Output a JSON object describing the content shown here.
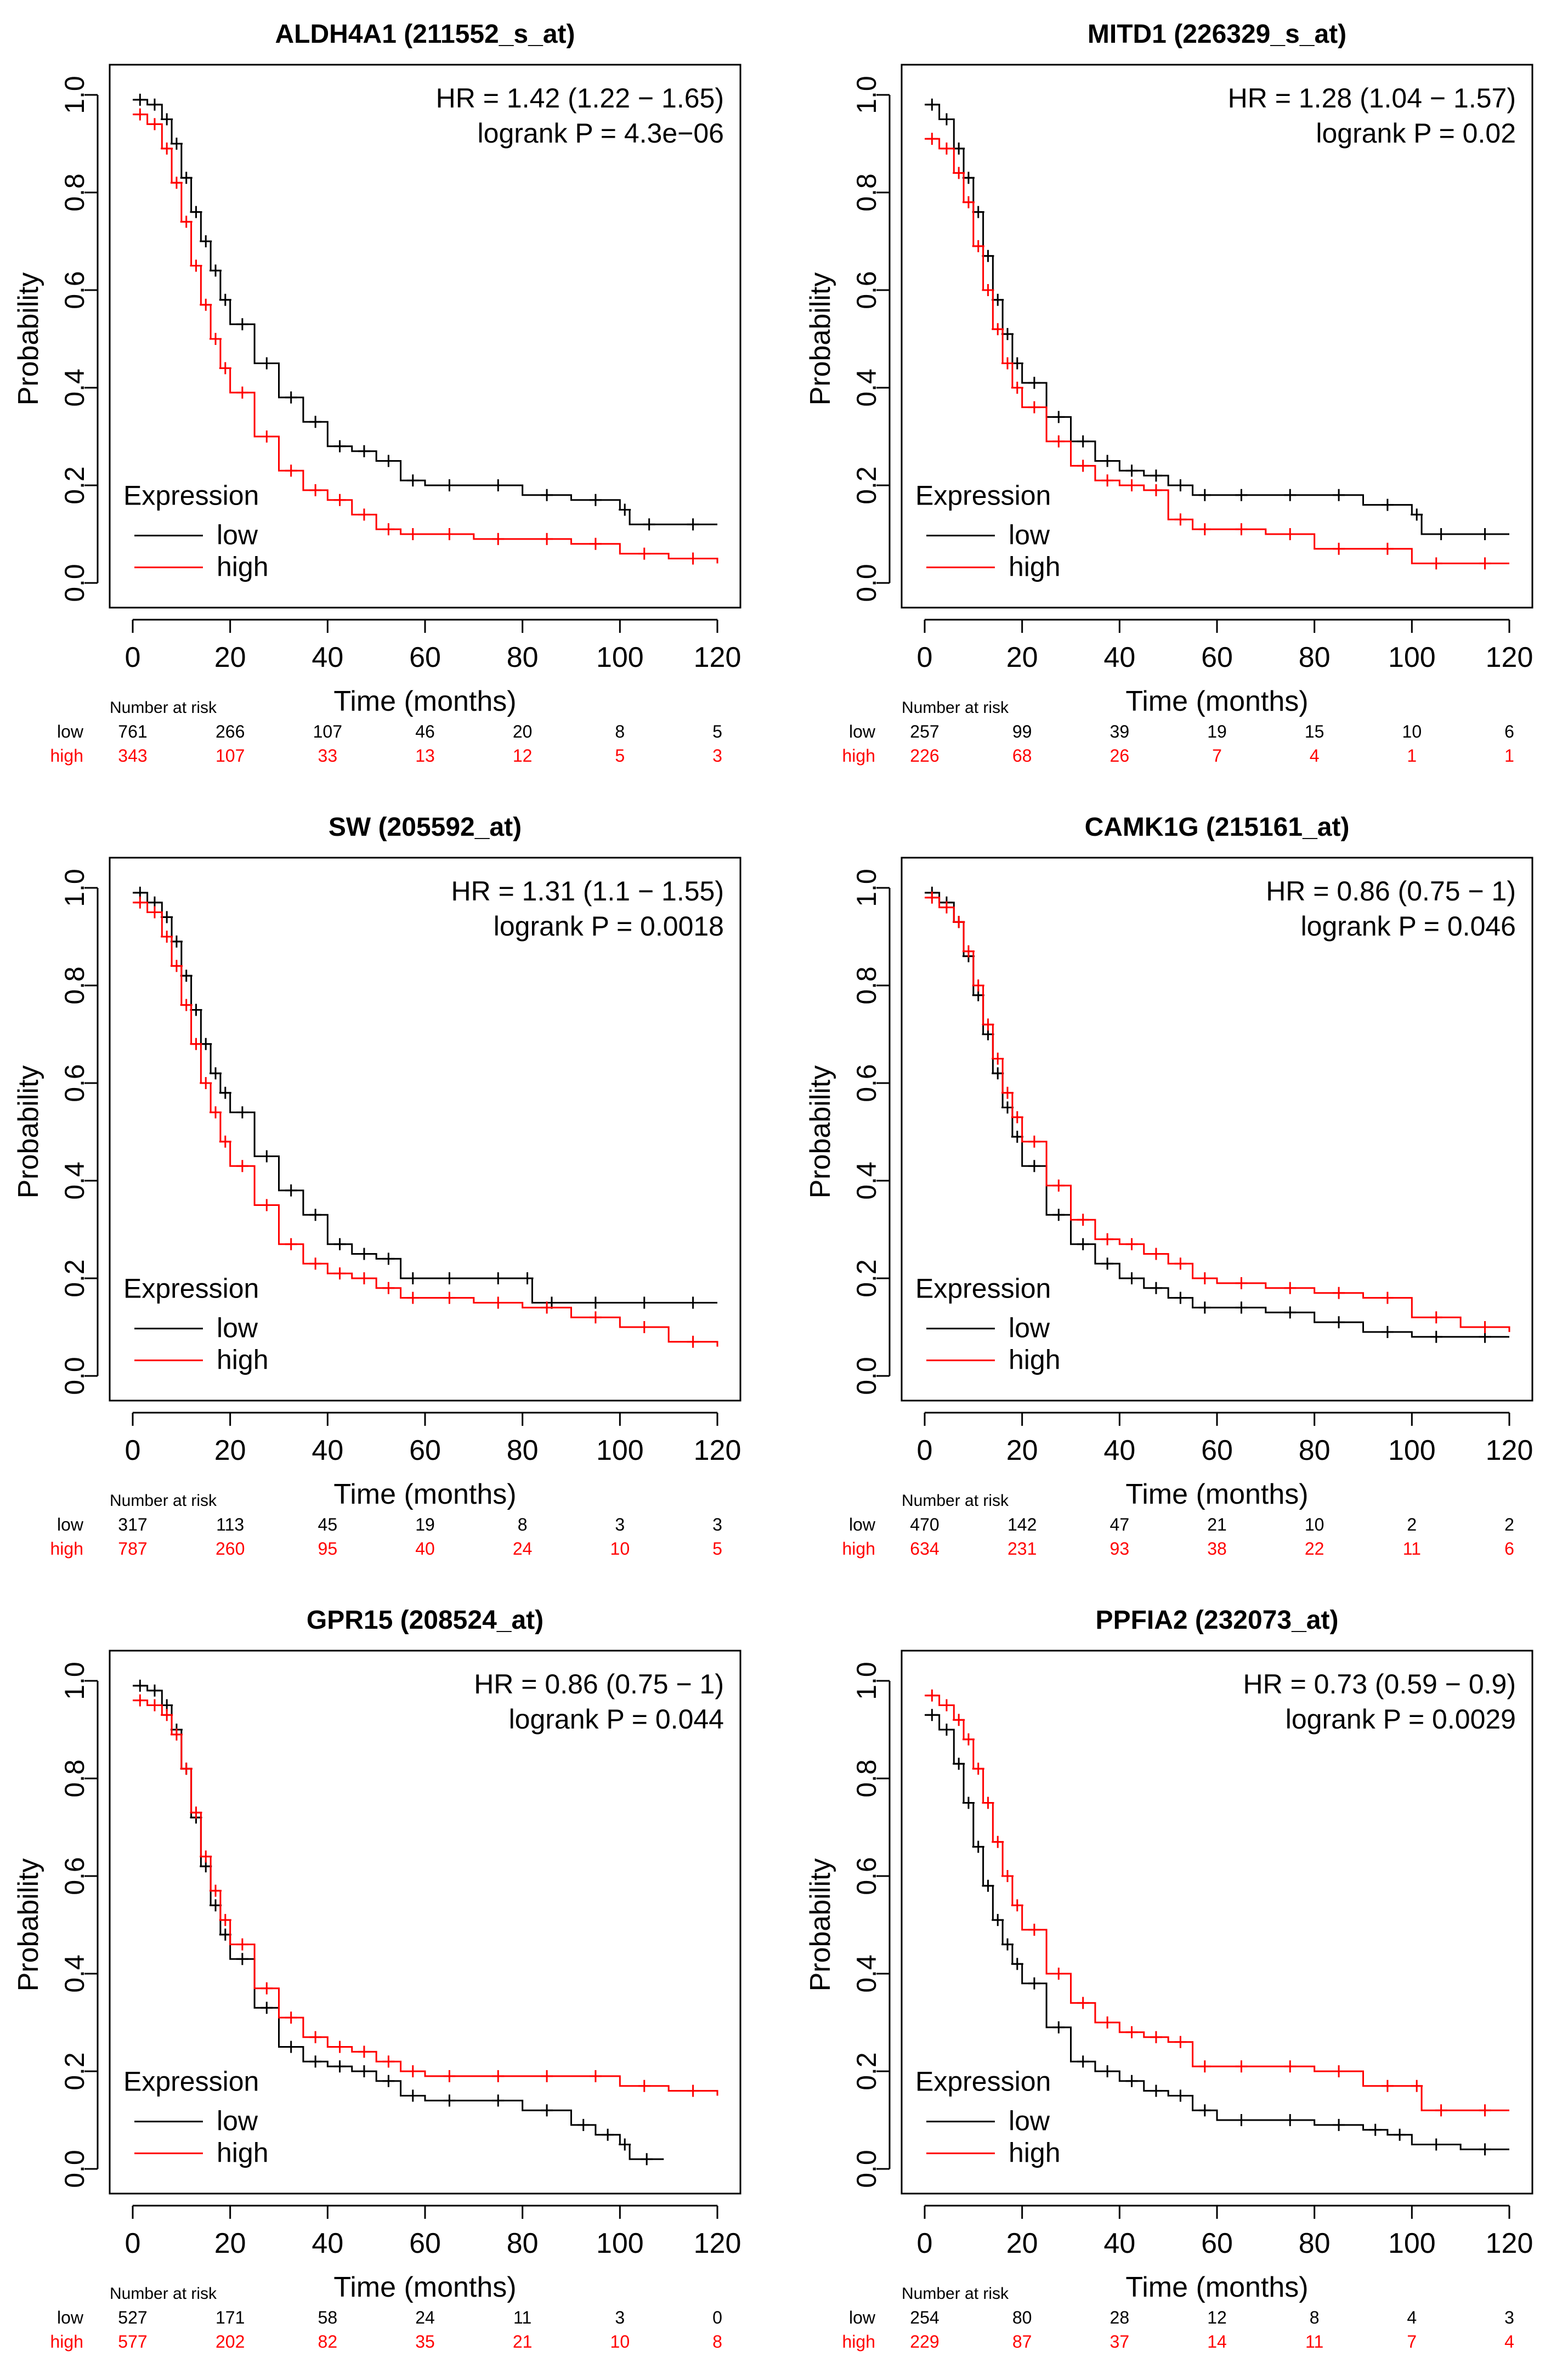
{
  "colors": {
    "low": "#000000",
    "high": "#ff0000",
    "axis": "#000000",
    "frame": "#000000"
  },
  "chart_data": [
    {
      "type": "line",
      "title": "ALDH4A1 (211552_s_at)",
      "xlabel": "Time (months)",
      "ylabel": "Probability",
      "xlim": [
        0,
        120
      ],
      "ylim": [
        0,
        1
      ],
      "xticks": [
        "0",
        "20",
        "40",
        "60",
        "80",
        "100",
        "120"
      ],
      "yticks": [
        "0.0",
        "0.2",
        "0.4",
        "0.6",
        "0.8",
        "1.0"
      ],
      "hr_text": "HR = 1.42 (1.22 − 1.65)",
      "p_text": "logrank P = 4.3e−06",
      "legend_title": "Expression",
      "risk_title": "Number at risk",
      "series": [
        {
          "name": "low",
          "x": [
            0,
            3,
            6,
            8,
            10,
            12,
            14,
            16,
            18,
            20,
            25,
            30,
            35,
            40,
            45,
            50,
            55,
            60,
            70,
            80,
            90,
            100,
            102,
            110,
            120
          ],
          "y": [
            0.99,
            0.98,
            0.95,
            0.9,
            0.83,
            0.76,
            0.7,
            0.64,
            0.58,
            0.53,
            0.45,
            0.38,
            0.33,
            0.28,
            0.27,
            0.25,
            0.21,
            0.2,
            0.2,
            0.18,
            0.17,
            0.15,
            0.12,
            0.12,
            0.12
          ],
          "risk": [
            "761",
            "266",
            "107",
            "46",
            "20",
            "8",
            "5"
          ]
        },
        {
          "name": "high",
          "x": [
            0,
            3,
            6,
            8,
            10,
            12,
            14,
            16,
            18,
            20,
            25,
            30,
            35,
            40,
            45,
            50,
            55,
            60,
            70,
            80,
            90,
            100,
            110,
            120
          ],
          "y": [
            0.96,
            0.94,
            0.89,
            0.82,
            0.74,
            0.65,
            0.57,
            0.5,
            0.44,
            0.39,
            0.3,
            0.23,
            0.19,
            0.17,
            0.14,
            0.11,
            0.1,
            0.1,
            0.09,
            0.09,
            0.08,
            0.06,
            0.05,
            0.04
          ],
          "risk": [
            "343",
            "107",
            "33",
            "13",
            "12",
            "5",
            "3"
          ]
        }
      ]
    },
    {
      "type": "line",
      "title": "MITD1 (226329_s_at)",
      "xlabel": "Time (months)",
      "ylabel": "Probability",
      "xlim": [
        0,
        120
      ],
      "ylim": [
        0,
        1
      ],
      "xticks": [
        "0",
        "20",
        "40",
        "60",
        "80",
        "100",
        "120"
      ],
      "yticks": [
        "0.0",
        "0.2",
        "0.4",
        "0.6",
        "0.8",
        "1.0"
      ],
      "hr_text": "HR = 1.28 (1.04 − 1.57)",
      "p_text": "logrank P = 0.02",
      "legend_title": "Expression",
      "risk_title": "Number at risk",
      "series": [
        {
          "name": "low",
          "x": [
            0,
            3,
            6,
            8,
            10,
            12,
            14,
            16,
            18,
            20,
            25,
            30,
            35,
            40,
            45,
            50,
            55,
            60,
            70,
            80,
            90,
            100,
            102,
            110,
            120
          ],
          "y": [
            0.98,
            0.95,
            0.89,
            0.83,
            0.76,
            0.67,
            0.58,
            0.51,
            0.45,
            0.41,
            0.34,
            0.29,
            0.25,
            0.23,
            0.22,
            0.2,
            0.18,
            0.18,
            0.18,
            0.18,
            0.16,
            0.14,
            0.1,
            0.1,
            0.1
          ],
          "risk": [
            "257",
            "99",
            "39",
            "19",
            "15",
            "10",
            "6"
          ]
        },
        {
          "name": "high",
          "x": [
            0,
            3,
            6,
            8,
            10,
            12,
            14,
            16,
            18,
            20,
            25,
            30,
            35,
            40,
            45,
            50,
            55,
            60,
            70,
            80,
            90,
            100,
            110,
            120
          ],
          "y": [
            0.91,
            0.89,
            0.84,
            0.78,
            0.69,
            0.6,
            0.52,
            0.45,
            0.4,
            0.36,
            0.29,
            0.24,
            0.21,
            0.2,
            0.19,
            0.13,
            0.11,
            0.11,
            0.1,
            0.07,
            0.07,
            0.04,
            0.04,
            0.04
          ],
          "risk": [
            "226",
            "68",
            "26",
            "7",
            "4",
            "1",
            "1"
          ]
        }
      ]
    },
    {
      "type": "line",
      "title": "SW (205592_at)",
      "xlabel": "Time (months)",
      "ylabel": "Probability",
      "xlim": [
        0,
        120
      ],
      "ylim": [
        0,
        1
      ],
      "xticks": [
        "0",
        "20",
        "40",
        "60",
        "80",
        "100",
        "120"
      ],
      "yticks": [
        "0.0",
        "0.2",
        "0.4",
        "0.6",
        "0.8",
        "1.0"
      ],
      "hr_text": "HR = 1.31 (1.1 − 1.55)",
      "p_text": "logrank P = 0.0018",
      "legend_title": "Expression",
      "risk_title": "Number at risk",
      "series": [
        {
          "name": "low",
          "x": [
            0,
            3,
            6,
            8,
            10,
            12,
            14,
            16,
            18,
            20,
            25,
            30,
            35,
            40,
            45,
            50,
            55,
            60,
            70,
            80,
            82,
            90,
            100,
            110,
            120
          ],
          "y": [
            0.99,
            0.97,
            0.94,
            0.89,
            0.82,
            0.75,
            0.68,
            0.62,
            0.58,
            0.54,
            0.45,
            0.38,
            0.33,
            0.27,
            0.25,
            0.24,
            0.2,
            0.2,
            0.2,
            0.2,
            0.15,
            0.15,
            0.15,
            0.15,
            0.15
          ],
          "risk": [
            "317",
            "113",
            "45",
            "19",
            "8",
            "3",
            "3"
          ]
        },
        {
          "name": "high",
          "x": [
            0,
            3,
            6,
            8,
            10,
            12,
            14,
            16,
            18,
            20,
            25,
            30,
            35,
            40,
            45,
            50,
            55,
            60,
            70,
            80,
            90,
            100,
            110,
            120
          ],
          "y": [
            0.97,
            0.95,
            0.9,
            0.84,
            0.76,
            0.68,
            0.6,
            0.54,
            0.48,
            0.43,
            0.35,
            0.27,
            0.23,
            0.21,
            0.2,
            0.18,
            0.16,
            0.16,
            0.15,
            0.14,
            0.12,
            0.1,
            0.07,
            0.06
          ],
          "risk": [
            "787",
            "260",
            "95",
            "40",
            "24",
            "10",
            "5"
          ]
        }
      ]
    },
    {
      "type": "line",
      "title": "CAMK1G (215161_at)",
      "xlabel": "Time (months)",
      "ylabel": "Probability",
      "xlim": [
        0,
        120
      ],
      "ylim": [
        0,
        1
      ],
      "xticks": [
        "0",
        "20",
        "40",
        "60",
        "80",
        "100",
        "120"
      ],
      "yticks": [
        "0.0",
        "0.2",
        "0.4",
        "0.6",
        "0.8",
        "1.0"
      ],
      "hr_text": "HR = 0.86 (0.75 − 1)",
      "p_text": "logrank P = 0.046",
      "legend_title": "Expression",
      "risk_title": "Number at risk",
      "series": [
        {
          "name": "low",
          "x": [
            0,
            3,
            6,
            8,
            10,
            12,
            14,
            16,
            18,
            20,
            25,
            30,
            35,
            40,
            45,
            50,
            55,
            60,
            70,
            80,
            90,
            100,
            110,
            120
          ],
          "y": [
            0.99,
            0.97,
            0.93,
            0.86,
            0.78,
            0.7,
            0.62,
            0.55,
            0.49,
            0.43,
            0.33,
            0.27,
            0.23,
            0.2,
            0.18,
            0.16,
            0.14,
            0.14,
            0.13,
            0.11,
            0.09,
            0.08,
            0.08,
            0.08
          ],
          "risk": [
            "470",
            "142",
            "47",
            "21",
            "10",
            "2",
            "2"
          ]
        },
        {
          "name": "high",
          "x": [
            0,
            3,
            6,
            8,
            10,
            12,
            14,
            16,
            18,
            20,
            25,
            30,
            35,
            40,
            45,
            50,
            55,
            60,
            70,
            80,
            90,
            100,
            110,
            120
          ],
          "y": [
            0.98,
            0.96,
            0.93,
            0.87,
            0.8,
            0.72,
            0.65,
            0.58,
            0.53,
            0.48,
            0.39,
            0.32,
            0.28,
            0.27,
            0.25,
            0.23,
            0.2,
            0.19,
            0.18,
            0.17,
            0.16,
            0.12,
            0.1,
            0.09
          ],
          "risk": [
            "634",
            "231",
            "93",
            "38",
            "22",
            "11",
            "6"
          ]
        }
      ]
    },
    {
      "type": "line",
      "title": "GPR15 (208524_at)",
      "xlabel": "Time (months)",
      "ylabel": "Probability",
      "xlim": [
        0,
        120
      ],
      "ylim": [
        0,
        1
      ],
      "xticks": [
        "0",
        "20",
        "40",
        "60",
        "80",
        "100",
        "120"
      ],
      "yticks": [
        "0.0",
        "0.2",
        "0.4",
        "0.6",
        "0.8",
        "1.0"
      ],
      "hr_text": "HR = 0.86 (0.75 − 1)",
      "p_text": "logrank P = 0.044",
      "legend_title": "Expression",
      "risk_title": "Number at risk",
      "series": [
        {
          "name": "low",
          "x": [
            0,
            3,
            6,
            8,
            10,
            12,
            14,
            16,
            18,
            20,
            25,
            30,
            35,
            40,
            45,
            50,
            55,
            60,
            70,
            80,
            90,
            95,
            100,
            102,
            109
          ],
          "y": [
            0.99,
            0.98,
            0.95,
            0.9,
            0.82,
            0.72,
            0.62,
            0.54,
            0.48,
            0.43,
            0.33,
            0.25,
            0.22,
            0.21,
            0.2,
            0.18,
            0.15,
            0.14,
            0.14,
            0.12,
            0.09,
            0.07,
            0.05,
            0.02,
            0.02
          ],
          "risk": [
            "527",
            "171",
            "58",
            "24",
            "11",
            "3",
            "0"
          ]
        },
        {
          "name": "high",
          "x": [
            0,
            3,
            6,
            8,
            10,
            12,
            14,
            16,
            18,
            20,
            25,
            30,
            35,
            40,
            45,
            50,
            55,
            60,
            70,
            80,
            90,
            100,
            110,
            120
          ],
          "y": [
            0.96,
            0.95,
            0.93,
            0.89,
            0.82,
            0.73,
            0.64,
            0.57,
            0.51,
            0.46,
            0.37,
            0.31,
            0.27,
            0.25,
            0.24,
            0.22,
            0.2,
            0.19,
            0.19,
            0.19,
            0.19,
            0.17,
            0.16,
            0.15
          ],
          "risk": [
            "577",
            "202",
            "82",
            "35",
            "21",
            "10",
            "8"
          ]
        }
      ]
    },
    {
      "type": "line",
      "title": "PPFIA2 (232073_at)",
      "xlabel": "Time (months)",
      "ylabel": "Probability",
      "xlim": [
        0,
        120
      ],
      "ylim": [
        0,
        1
      ],
      "xticks": [
        "0",
        "20",
        "40",
        "60",
        "80",
        "100",
        "120"
      ],
      "yticks": [
        "0.0",
        "0.2",
        "0.4",
        "0.6",
        "0.8",
        "1.0"
      ],
      "hr_text": "HR = 0.73 (0.59 − 0.9)",
      "p_text": "logrank P = 0.0029",
      "legend_title": "Expression",
      "risk_title": "Number at risk",
      "series": [
        {
          "name": "low",
          "x": [
            0,
            3,
            6,
            8,
            10,
            12,
            14,
            16,
            18,
            20,
            25,
            30,
            35,
            40,
            45,
            50,
            55,
            60,
            70,
            80,
            90,
            95,
            100,
            110,
            120
          ],
          "y": [
            0.93,
            0.9,
            0.83,
            0.75,
            0.66,
            0.58,
            0.51,
            0.46,
            0.42,
            0.38,
            0.29,
            0.22,
            0.2,
            0.18,
            0.16,
            0.15,
            0.12,
            0.1,
            0.1,
            0.09,
            0.08,
            0.07,
            0.05,
            0.04,
            0.04
          ],
          "risk": [
            "254",
            "80",
            "28",
            "12",
            "8",
            "4",
            "3"
          ]
        },
        {
          "name": "high",
          "x": [
            0,
            3,
            6,
            8,
            10,
            12,
            14,
            16,
            18,
            20,
            25,
            30,
            35,
            40,
            45,
            50,
            55,
            60,
            70,
            80,
            90,
            100,
            102,
            110,
            120
          ],
          "y": [
            0.97,
            0.95,
            0.92,
            0.88,
            0.82,
            0.75,
            0.67,
            0.6,
            0.54,
            0.49,
            0.4,
            0.34,
            0.3,
            0.28,
            0.27,
            0.26,
            0.21,
            0.21,
            0.21,
            0.2,
            0.17,
            0.17,
            0.12,
            0.12,
            0.12
          ],
          "risk": [
            "229",
            "87",
            "37",
            "14",
            "11",
            "7",
            "4"
          ]
        }
      ]
    }
  ]
}
